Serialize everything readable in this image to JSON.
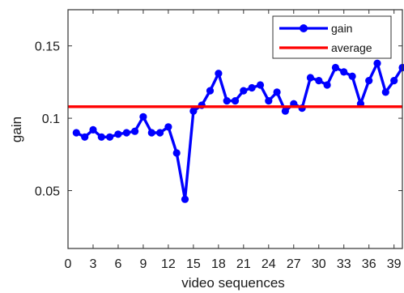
{
  "chart_data": {
    "type": "line",
    "xlabel": "video sequences",
    "ylabel": "gain",
    "xlim": [
      0,
      40
    ],
    "ylim": [
      0.01,
      0.175
    ],
    "xticks": [
      0,
      3,
      6,
      9,
      12,
      15,
      18,
      21,
      24,
      27,
      30,
      33,
      36,
      39
    ],
    "yticks": [
      0.05,
      0.1,
      0.15
    ],
    "ytick_labels": [
      "0.05",
      "0.1",
      "0.15"
    ],
    "grid": false,
    "legend_position": "top-right",
    "series": [
      {
        "name": "gain",
        "color": "#0000ff",
        "marker": "circle",
        "x": [
          1,
          2,
          3,
          4,
          5,
          6,
          7,
          8,
          9,
          10,
          11,
          12,
          13,
          14,
          15,
          16,
          17,
          18,
          19,
          20,
          21,
          22,
          23,
          24,
          25,
          26,
          27,
          28,
          29,
          30,
          31,
          32,
          33,
          34,
          35,
          36,
          37,
          38,
          39,
          40
        ],
        "values": [
          0.09,
          0.087,
          0.092,
          0.087,
          0.087,
          0.089,
          0.09,
          0.091,
          0.101,
          0.09,
          0.09,
          0.094,
          0.076,
          0.044,
          0.105,
          0.109,
          0.119,
          0.131,
          0.112,
          0.112,
          0.119,
          0.121,
          0.123,
          0.112,
          0.118,
          0.105,
          0.11,
          0.107,
          0.128,
          0.126,
          0.123,
          0.135,
          0.132,
          0.129,
          0.11,
          0.126,
          0.138,
          0.118,
          0.126,
          0.135
        ]
      },
      {
        "name": "average",
        "color": "#ff0000",
        "marker": "none",
        "x": [
          0,
          40
        ],
        "values": [
          0.108,
          0.108
        ]
      }
    ]
  }
}
